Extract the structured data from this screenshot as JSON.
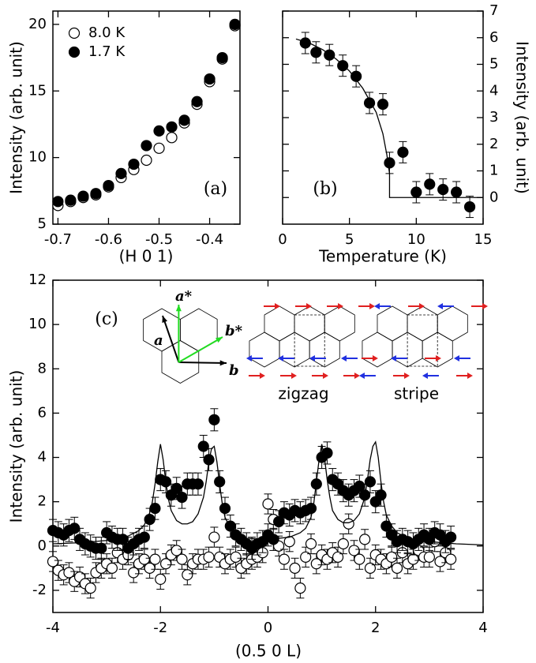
{
  "chart_data": [
    {
      "type": "scatter",
      "annotation": "(a)",
      "x_label": "(H 0 1)",
      "y_label": "Intensity (arb. unit)",
      "xlim": [
        -0.71,
        -0.34
      ],
      "xticks": [
        -0.7,
        -0.6,
        -0.5,
        -0.4
      ],
      "ylim": [
        5,
        21
      ],
      "yticks": [
        5,
        10,
        15,
        20
      ],
      "y_axis_side": "left",
      "legend": "upper left",
      "series": [
        {
          "name": "8.0 K",
          "marker": "open",
          "color": "#000000",
          "x": [
            -0.7,
            -0.675,
            -0.65,
            -0.625,
            -0.6,
            -0.575,
            -0.55,
            -0.525,
            -0.5,
            -0.475,
            -0.45,
            -0.425,
            -0.4,
            -0.375,
            -0.35
          ],
          "values": [
            6.4,
            6.7,
            7.0,
            7.2,
            7.8,
            8.5,
            9.1,
            9.8,
            10.7,
            11.5,
            12.6,
            14.0,
            15.7,
            17.4,
            19.9
          ]
        },
        {
          "name": "1.7 K",
          "marker": "filled",
          "color": "#000000",
          "x": [
            -0.7,
            -0.675,
            -0.65,
            -0.625,
            -0.6,
            -0.575,
            -0.55,
            -0.525,
            -0.5,
            -0.475,
            -0.45,
            -0.425,
            -0.4,
            -0.375,
            -0.35
          ],
          "values": [
            6.7,
            6.8,
            7.1,
            7.3,
            7.9,
            8.8,
            9.5,
            10.9,
            12.0,
            12.3,
            12.8,
            14.2,
            15.9,
            17.5,
            20.0
          ]
        }
      ]
    },
    {
      "type": "scatter",
      "annotation": "(b)",
      "x_label": "Temperature (K)",
      "y_label": "Intensity (arb. unit)",
      "xlim": [
        0,
        15
      ],
      "xticks": [
        0,
        5,
        10,
        15
      ],
      "ylim": [
        -1,
        7
      ],
      "yticks": [
        0,
        1,
        2,
        3,
        4,
        5,
        6,
        7
      ],
      "y_axis_side": "right",
      "series": [
        {
          "marker": "filled",
          "color": "#000000",
          "error": 0.4,
          "x": [
            1.7,
            2.5,
            3.5,
            4.5,
            5.5,
            6.5,
            7.5,
            8,
            9,
            10,
            11,
            12,
            13,
            14
          ],
          "values": [
            5.8,
            5.45,
            5.35,
            4.95,
            4.55,
            3.55,
            3.5,
            1.3,
            1.7,
            0.2,
            0.5,
            0.3,
            0.2,
            -0.35
          ]
        },
        {
          "marker": "line",
          "color": "#000000",
          "x": [
            1,
            2,
            3,
            4,
            5,
            6,
            7,
            7.5,
            7.8,
            8,
            8,
            15
          ],
          "values": [
            5.95,
            5.8,
            5.55,
            5.2,
            4.75,
            4.1,
            3.2,
            2.4,
            1.6,
            0.9,
            0,
            0
          ]
        }
      ]
    },
    {
      "type": "scatter",
      "annotation": "(c)",
      "x_label": "(0.5 0 L)",
      "y_label": "Intensity (arb. unit)",
      "xlim": [
        -4,
        4
      ],
      "xticks": [
        -4,
        -2,
        0,
        2,
        4
      ],
      "ylim": [
        -3,
        12
      ],
      "yticks": [
        -2,
        0,
        2,
        4,
        6,
        8,
        10,
        12
      ],
      "y_axis_side": "left",
      "inset": {
        "real": [
          "a",
          "b"
        ],
        "reciprocal": [
          "a*",
          "b*"
        ],
        "patterns": [
          "zigzag",
          "stripe"
        ]
      },
      "series": [
        {
          "marker": "open",
          "color": "#000000",
          "error": 0.45,
          "x": [
            -4.0,
            -3.9,
            -3.8,
            -3.7,
            -3.6,
            -3.5,
            -3.4,
            -3.3,
            -3.2,
            -3.1,
            -3.0,
            -2.9,
            -2.8,
            -2.7,
            -2.6,
            -2.5,
            -2.4,
            -2.3,
            -2.2,
            -2.1,
            -2.0,
            -1.9,
            -1.8,
            -1.7,
            -1.6,
            -1.5,
            -1.4,
            -1.3,
            -1.2,
            -1.1,
            -1.0,
            -0.9,
            -0.8,
            -0.7,
            -0.6,
            -0.5,
            -0.4,
            -0.3,
            -0.2,
            -0.1,
            0.0,
            0.1,
            0.2,
            0.3,
            0.4,
            0.5,
            0.6,
            0.7,
            0.8,
            0.9,
            1.0,
            1.1,
            1.2,
            1.3,
            1.4,
            1.5,
            1.6,
            1.7,
            1.8,
            1.9,
            2.0,
            2.1,
            2.2,
            2.3,
            2.4,
            2.5,
            2.6,
            2.7,
            2.8,
            2.9,
            3.0,
            3.1,
            3.2,
            3.3,
            3.4
          ],
          "values": [
            -0.7,
            -1.1,
            -1.3,
            -1.2,
            -1.6,
            -1.4,
            -1.7,
            -1.9,
            -1.2,
            -1.0,
            -0.8,
            -1.0,
            -0.3,
            -0.6,
            -0.4,
            -1.2,
            -0.8,
            -0.6,
            -1.0,
            -0.6,
            -1.5,
            -0.8,
            -0.4,
            -0.2,
            -0.6,
            -1.3,
            -0.8,
            -0.6,
            -0.6,
            -0.5,
            0.4,
            -0.5,
            -0.8,
            -0.6,
            -0.5,
            -1.0,
            -0.8,
            -0.6,
            -0.5,
            -0.3,
            1.9,
            1.2,
            0.0,
            -0.6,
            0.2,
            -1.0,
            -1.9,
            -0.5,
            0.1,
            -0.8,
            -0.4,
            -0.6,
            -0.3,
            -0.5,
            0.1,
            1.0,
            -0.2,
            -0.6,
            0.3,
            -1.0,
            -0.4,
            -0.6,
            -0.8,
            -0.5,
            -1.0,
            -0.3,
            -0.8,
            -0.6,
            -0.2,
            -0.5,
            -0.5,
            0.2,
            -0.7,
            -0.3,
            -0.6
          ]
        },
        {
          "marker": "filled",
          "color": "#000000",
          "error": 0.5,
          "x": [
            -4.0,
            -3.9,
            -3.8,
            -3.7,
            -3.6,
            -3.5,
            -3.4,
            -3.3,
            -3.2,
            -3.1,
            -3.0,
            -2.9,
            -2.8,
            -2.7,
            -2.6,
            -2.5,
            -2.4,
            -2.3,
            -2.2,
            -2.1,
            -2.0,
            -1.9,
            -1.8,
            -1.7,
            -1.6,
            -1.5,
            -1.4,
            -1.3,
            -1.2,
            -1.1,
            -1.0,
            -0.9,
            -0.8,
            -0.7,
            -0.6,
            -0.5,
            -0.4,
            -0.3,
            -0.2,
            -0.1,
            0.0,
            0.1,
            0.2,
            0.3,
            0.4,
            0.5,
            0.6,
            0.7,
            0.8,
            0.9,
            1.0,
            1.1,
            1.2,
            1.3,
            1.4,
            1.5,
            1.6,
            1.7,
            1.8,
            1.9,
            2.0,
            2.1,
            2.2,
            2.3,
            2.4,
            2.5,
            2.6,
            2.7,
            2.8,
            2.9,
            3.0,
            3.1,
            3.2,
            3.3,
            3.4
          ],
          "values": [
            0.7,
            0.6,
            0.5,
            0.7,
            0.8,
            0.3,
            0.1,
            0.0,
            -0.1,
            -0.1,
            0.6,
            0.4,
            0.3,
            0.3,
            -0.1,
            0.1,
            0.3,
            0.4,
            1.2,
            1.7,
            3.0,
            2.9,
            2.3,
            2.6,
            2.2,
            2.8,
            2.8,
            2.8,
            4.5,
            3.9,
            5.7,
            2.9,
            1.7,
            0.9,
            0.5,
            0.3,
            0.1,
            -0.1,
            0.1,
            0.2,
            0.5,
            0.3,
            1.1,
            1.5,
            1.4,
            1.6,
            1.5,
            1.6,
            1.7,
            2.8,
            4.0,
            4.2,
            3.0,
            2.8,
            2.5,
            2.3,
            2.5,
            2.7,
            2.3,
            2.9,
            2.0,
            2.3,
            0.9,
            0.5,
            0.2,
            0.3,
            0.2,
            0.1,
            0.3,
            0.5,
            0.3,
            0.6,
            0.5,
            0.2,
            0.4
          ]
        },
        {
          "marker": "line",
          "color": "#000000",
          "x": [
            -4,
            -3.5,
            -3,
            -2.6,
            -2.4,
            -2.3,
            -2.2,
            -2.15,
            -2.1,
            -2.05,
            -2,
            -1.95,
            -1.9,
            -1.85,
            -1.8,
            -1.7,
            -1.6,
            -1.5,
            -1.4,
            -1.3,
            -1.2,
            -1.15,
            -1.1,
            -1.05,
            -1,
            -0.95,
            -0.9,
            -0.85,
            -0.8,
            -0.7,
            -0.6,
            -0.4,
            0,
            0.4,
            0.6,
            0.7,
            0.8,
            0.85,
            0.9,
            0.95,
            1,
            1.05,
            1.1,
            1.15,
            1.2,
            1.3,
            1.4,
            1.5,
            1.6,
            1.7,
            1.8,
            1.85,
            1.9,
            1.95,
            2,
            2.05,
            2.1,
            2.15,
            2.2,
            2.3,
            2.4,
            2.6,
            3,
            3.5,
            4
          ],
          "values": [
            0.1,
            0.15,
            0.25,
            0.45,
            0.7,
            0.95,
            1.5,
            2.0,
            2.8,
            3.8,
            4.6,
            3.9,
            2.9,
            2.1,
            1.6,
            1.15,
            1.0,
            1.0,
            1.1,
            1.45,
            2.2,
            2.9,
            3.8,
            4.4,
            4.5,
            3.8,
            2.8,
            1.9,
            1.3,
            0.8,
            0.55,
            0.35,
            0.3,
            0.4,
            0.6,
            0.8,
            1.3,
            1.9,
            2.9,
            3.9,
            4.6,
            4.0,
            3.0,
            2.2,
            1.6,
            1.2,
            1.05,
            1.05,
            1.15,
            1.45,
            2.2,
            3.0,
            3.9,
            4.5,
            4.7,
            4.0,
            2.9,
            2.0,
            1.4,
            0.9,
            0.6,
            0.35,
            0.2,
            0.1,
            0.05
          ]
        }
      ]
    }
  ]
}
